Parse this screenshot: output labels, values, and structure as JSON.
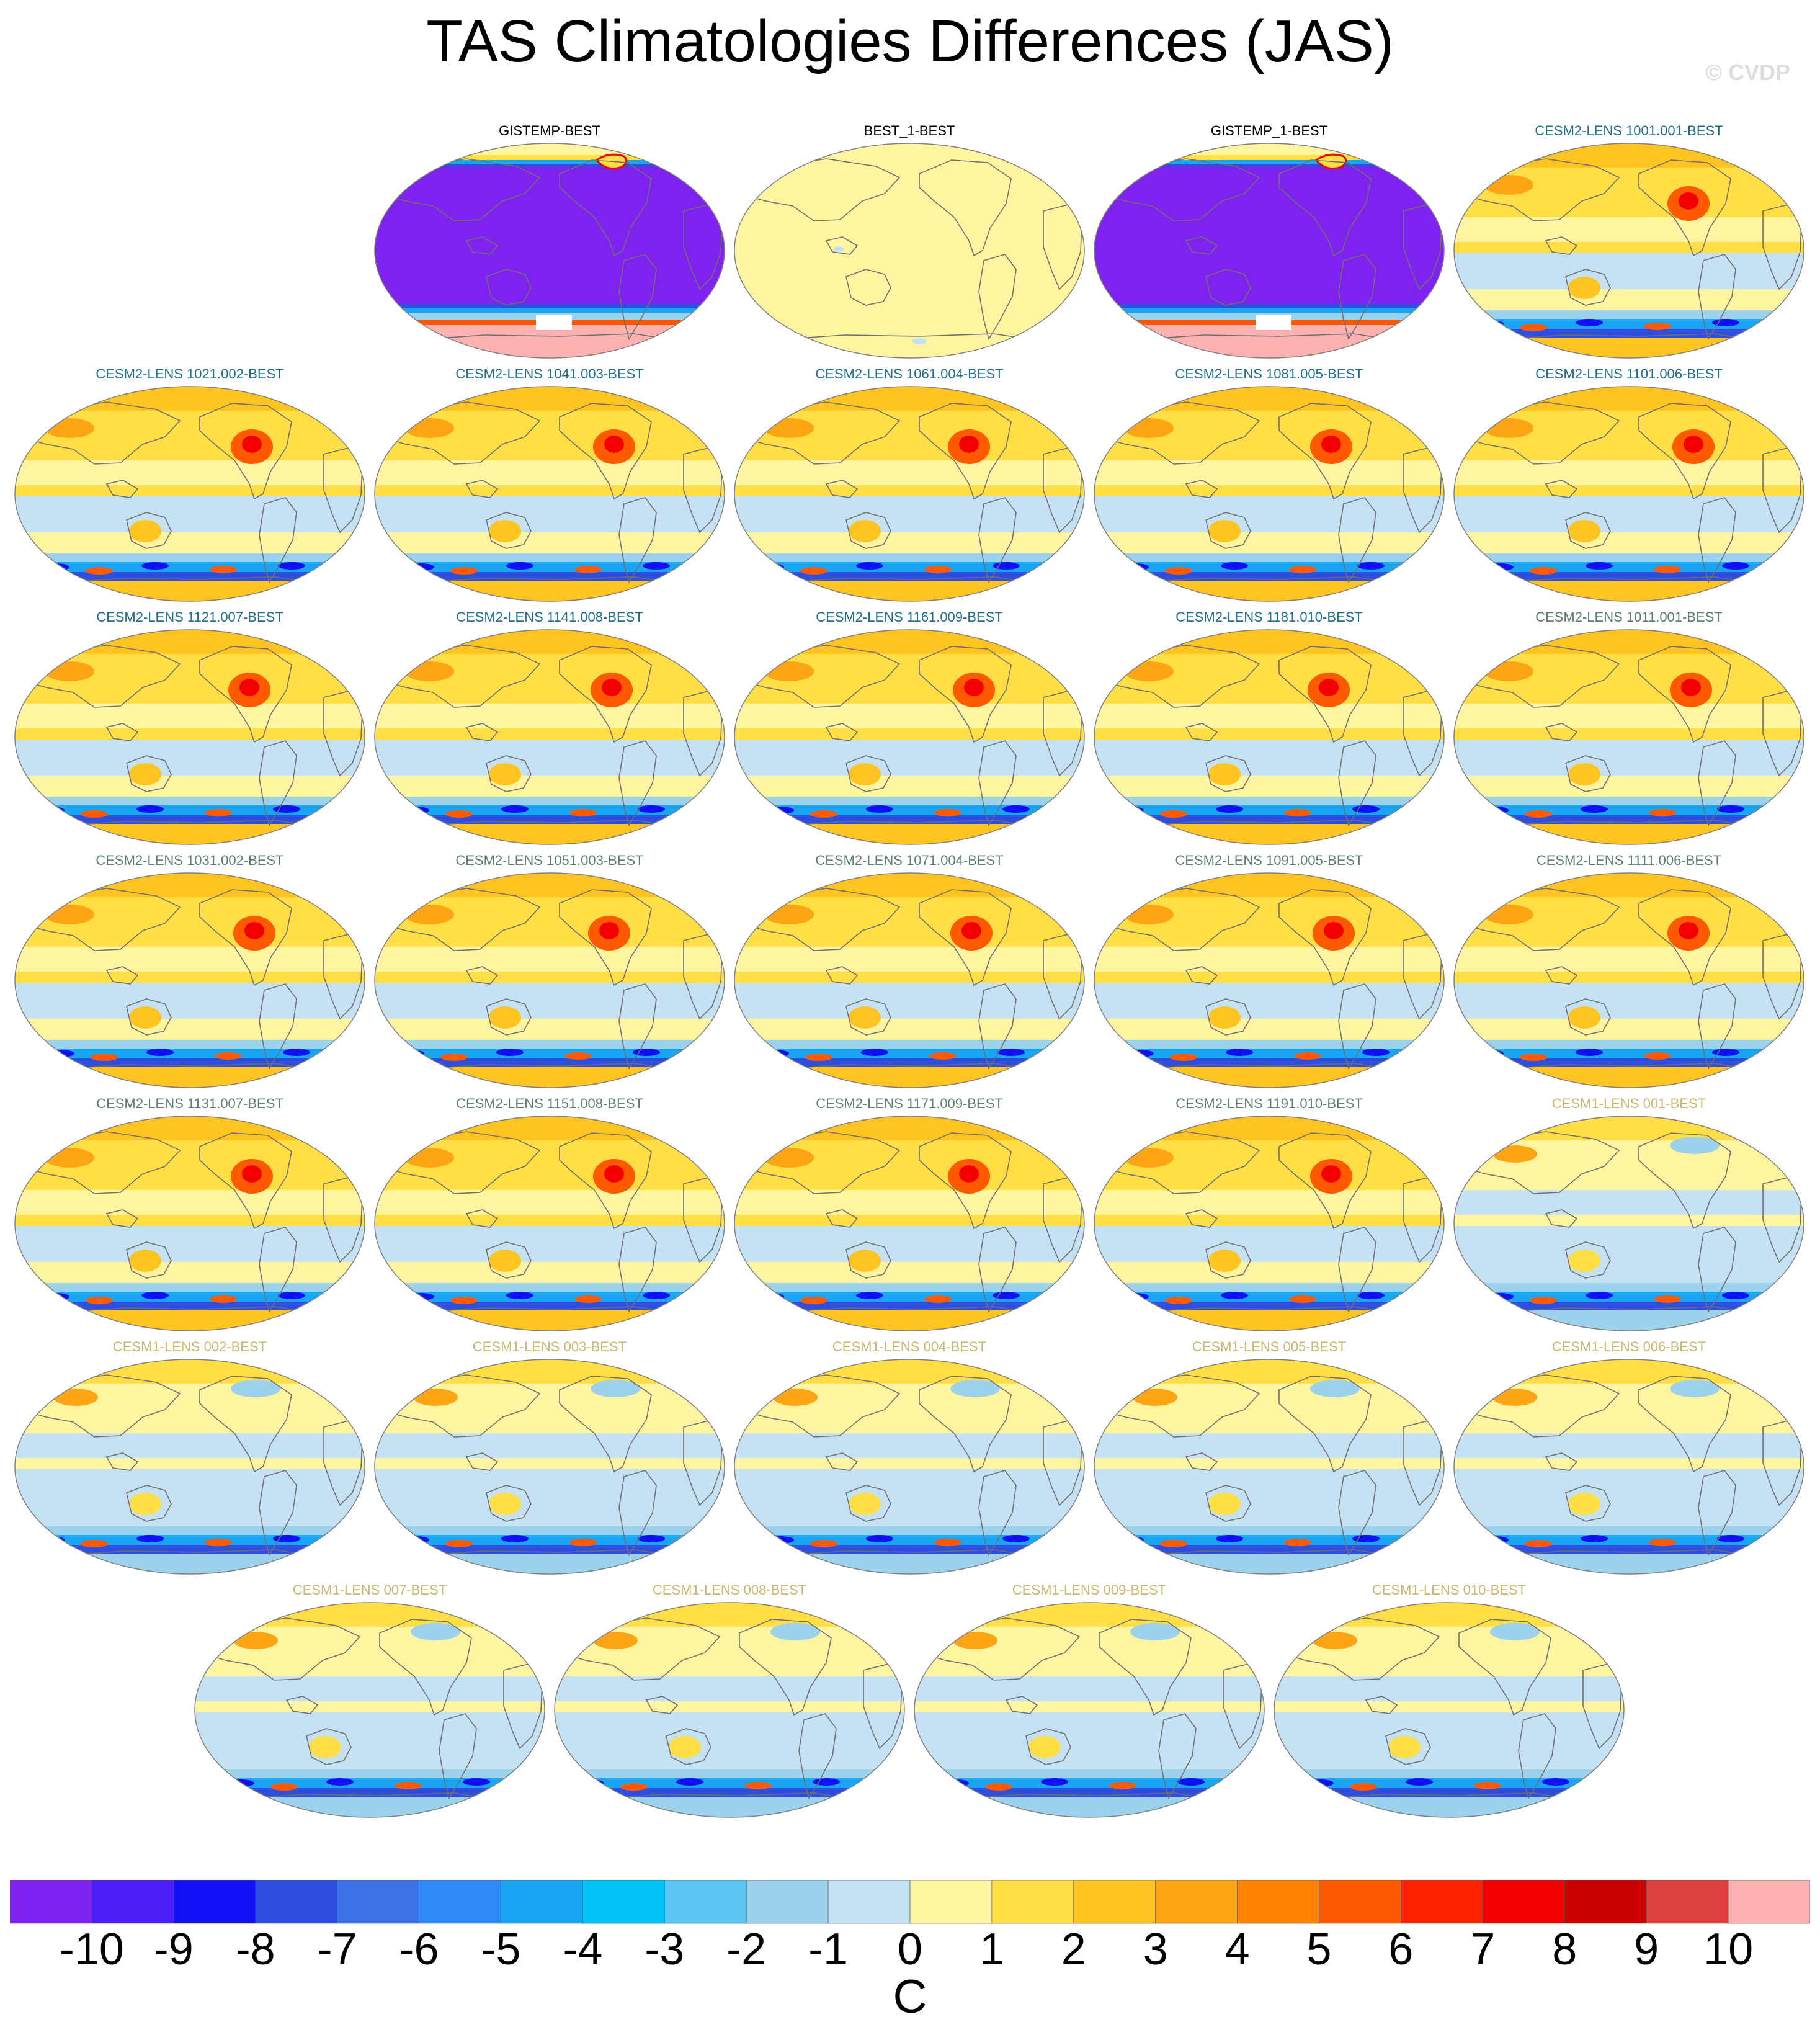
{
  "title": "TAS Climatologies Differences (JAS)",
  "copyright": "© CVDP",
  "colors": {
    "text_obs": "#000000",
    "text_cesm2_a": "#1f6e8c",
    "text_cesm2_b": "#5c7f6b",
    "text_cesm1": "#c8b870",
    "land_outline": "#707070"
  },
  "panels": [
    {
      "row": 0,
      "col": 1,
      "title": "GISTEMP-BEST",
      "style": "gistemp",
      "color_key": "text_obs"
    },
    {
      "row": 0,
      "col": 2,
      "title": "BEST_1-BEST",
      "style": "best",
      "color_key": "text_obs"
    },
    {
      "row": 0,
      "col": 3,
      "title": "GISTEMP_1-BEST",
      "style": "gistemp",
      "color_key": "text_obs"
    },
    {
      "row": 0,
      "col": 4,
      "title": "CESM2-LENS 1001.001-BEST",
      "style": "cesm2",
      "color_key": "text_cesm2_a"
    },
    {
      "row": 1,
      "col": 0,
      "title": "CESM2-LENS 1021.002-BEST",
      "style": "cesm2",
      "color_key": "text_cesm2_a"
    },
    {
      "row": 1,
      "col": 1,
      "title": "CESM2-LENS 1041.003-BEST",
      "style": "cesm2",
      "color_key": "text_cesm2_a"
    },
    {
      "row": 1,
      "col": 2,
      "title": "CESM2-LENS 1061.004-BEST",
      "style": "cesm2",
      "color_key": "text_cesm2_a"
    },
    {
      "row": 1,
      "col": 3,
      "title": "CESM2-LENS 1081.005-BEST",
      "style": "cesm2",
      "color_key": "text_cesm2_a"
    },
    {
      "row": 1,
      "col": 4,
      "title": "CESM2-LENS 1101.006-BEST",
      "style": "cesm2",
      "color_key": "text_cesm2_a"
    },
    {
      "row": 2,
      "col": 0,
      "title": "CESM2-LENS 1121.007-BEST",
      "style": "cesm2",
      "color_key": "text_cesm2_a"
    },
    {
      "row": 2,
      "col": 1,
      "title": "CESM2-LENS 1141.008-BEST",
      "style": "cesm2",
      "color_key": "text_cesm2_a"
    },
    {
      "row": 2,
      "col": 2,
      "title": "CESM2-LENS 1161.009-BEST",
      "style": "cesm2",
      "color_key": "text_cesm2_a"
    },
    {
      "row": 2,
      "col": 3,
      "title": "CESM2-LENS 1181.010-BEST",
      "style": "cesm2",
      "color_key": "text_cesm2_a"
    },
    {
      "row": 2,
      "col": 4,
      "title": "CESM2-LENS 1011.001-BEST",
      "style": "cesm2",
      "color_key": "text_cesm2_b"
    },
    {
      "row": 3,
      "col": 0,
      "title": "CESM2-LENS 1031.002-BEST",
      "style": "cesm2",
      "color_key": "text_cesm2_b"
    },
    {
      "row": 3,
      "col": 1,
      "title": "CESM2-LENS 1051.003-BEST",
      "style": "cesm2",
      "color_key": "text_cesm2_b"
    },
    {
      "row": 3,
      "col": 2,
      "title": "CESM2-LENS 1071.004-BEST",
      "style": "cesm2",
      "color_key": "text_cesm2_b"
    },
    {
      "row": 3,
      "col": 3,
      "title": "CESM2-LENS 1091.005-BEST",
      "style": "cesm2",
      "color_key": "text_cesm2_b"
    },
    {
      "row": 3,
      "col": 4,
      "title": "CESM2-LENS 1111.006-BEST",
      "style": "cesm2",
      "color_key": "text_cesm2_b"
    },
    {
      "row": 4,
      "col": 0,
      "title": "CESM2-LENS 1131.007-BEST",
      "style": "cesm2",
      "color_key": "text_cesm2_b"
    },
    {
      "row": 4,
      "col": 1,
      "title": "CESM2-LENS 1151.008-BEST",
      "style": "cesm2",
      "color_key": "text_cesm2_b"
    },
    {
      "row": 4,
      "col": 2,
      "title": "CESM2-LENS 1171.009-BEST",
      "style": "cesm2",
      "color_key": "text_cesm2_b"
    },
    {
      "row": 4,
      "col": 3,
      "title": "CESM2-LENS 1191.010-BEST",
      "style": "cesm2",
      "color_key": "text_cesm2_b"
    },
    {
      "row": 4,
      "col": 4,
      "title": "CESM1-LENS 001-BEST",
      "style": "cesm1",
      "color_key": "text_cesm1"
    },
    {
      "row": 5,
      "col": 0,
      "title": "CESM1-LENS 002-BEST",
      "style": "cesm1",
      "color_key": "text_cesm1"
    },
    {
      "row": 5,
      "col": 1,
      "title": "CESM1-LENS 003-BEST",
      "style": "cesm1",
      "color_key": "text_cesm1"
    },
    {
      "row": 5,
      "col": 2,
      "title": "CESM1-LENS 004-BEST",
      "style": "cesm1",
      "color_key": "text_cesm1"
    },
    {
      "row": 5,
      "col": 3,
      "title": "CESM1-LENS 005-BEST",
      "style": "cesm1",
      "color_key": "text_cesm1"
    },
    {
      "row": 5,
      "col": 4,
      "title": "CESM1-LENS 006-BEST",
      "style": "cesm1",
      "color_key": "text_cesm1"
    },
    {
      "row": 6,
      "col": 0,
      "title": "CESM1-LENS 007-BEST",
      "style": "cesm1",
      "color_key": "text_cesm1"
    },
    {
      "row": 6,
      "col": 1,
      "title": "CESM1-LENS 008-BEST",
      "style": "cesm1",
      "color_key": "text_cesm1"
    },
    {
      "row": 6,
      "col": 2,
      "title": "CESM1-LENS 009-BEST",
      "style": "cesm1",
      "color_key": "text_cesm1"
    },
    {
      "row": 6,
      "col": 3,
      "title": "CESM1-LENS 010-BEST",
      "style": "cesm1",
      "color_key": "text_cesm1"
    }
  ],
  "colorbar": {
    "unit": "C",
    "labels": [
      "-10",
      "-9",
      "-8",
      "-7",
      "-6",
      "-5",
      "-4",
      "-3",
      "-2",
      "-1",
      "0",
      "1",
      "2",
      "3",
      "4",
      "5",
      "6",
      "7",
      "8",
      "9",
      "10"
    ],
    "colors": [
      "#7f22f0",
      "#4a1ef5",
      "#1010f5",
      "#2e4ee0",
      "#3a72e6",
      "#2f8af5",
      "#18a6f5",
      "#00c3f5",
      "#5ac5f0",
      "#9dd2ec",
      "#c5e2f5",
      "#fff4a0",
      "#ffdf45",
      "#ffc422",
      "#ffa415",
      "#ff8200",
      "#ff5a00",
      "#ff2300",
      "#f20000",
      "#cc0000",
      "#dd4040",
      "#ffb0b0"
    ]
  }
}
